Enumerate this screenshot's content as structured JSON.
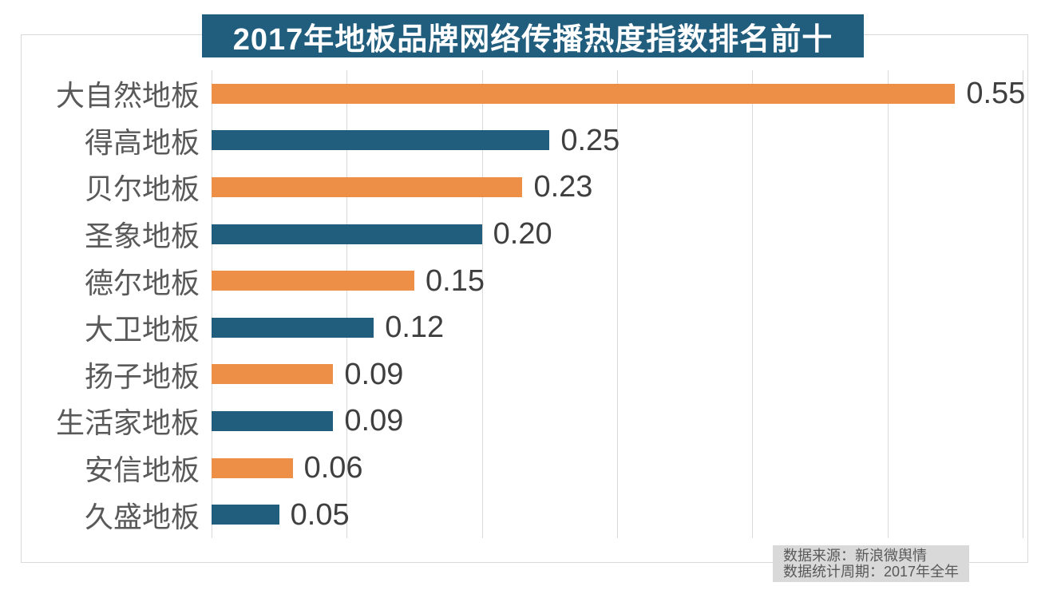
{
  "chart_data": {
    "type": "bar",
    "orientation": "horizontal",
    "title": "2017年地板品牌网络传播热度指数排名前十",
    "categories": [
      "大自然地板",
      "得高地板",
      "贝尔地板",
      "圣象地板",
      "德尔地板",
      "大卫地板",
      "扬子地板",
      "生活家地板",
      "安信地板",
      "久盛地板"
    ],
    "values": [
      0.55,
      0.25,
      0.23,
      0.2,
      0.15,
      0.12,
      0.09,
      0.09,
      0.06,
      0.05
    ],
    "value_labels": [
      "0.55",
      "0.25",
      "0.23",
      "0.20",
      "0.15",
      "0.12",
      "0.09",
      "0.09",
      "0.06",
      "0.05"
    ],
    "xlim": [
      0,
      0.6
    ],
    "gridline_values": [
      0,
      0.1,
      0.2,
      0.3,
      0.4,
      0.5,
      0.6
    ],
    "grid": "vertical-only",
    "legend": "none",
    "bar_color_pattern": [
      "orange",
      "blue"
    ]
  },
  "colors": {
    "bar_orange": "#ED8F47",
    "bar_blue": "#215E7E",
    "title_bg": "#215E7E",
    "title_text": "#FFFFFF",
    "gridline": "#D9D9D9",
    "frame_border": "#D9D9D9",
    "category_label": "#595959",
    "value_label": "#3F3F3F",
    "source_bg": "#D9D9D9",
    "source_text": "#595959"
  },
  "source_note": {
    "line1": "数据来源：新浪微舆情",
    "line2": "数据统计周期：2017年全年"
  }
}
